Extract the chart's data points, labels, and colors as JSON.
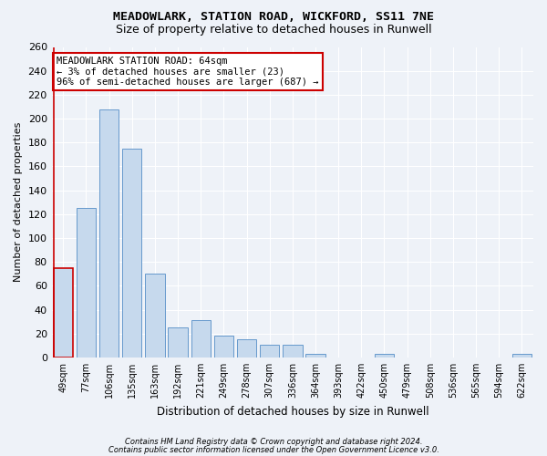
{
  "title1": "MEADOWLARK, STATION ROAD, WICKFORD, SS11 7NE",
  "title2": "Size of property relative to detached houses in Runwell",
  "xlabel": "Distribution of detached houses by size in Runwell",
  "ylabel": "Number of detached properties",
  "categories": [
    "49sqm",
    "77sqm",
    "106sqm",
    "135sqm",
    "163sqm",
    "192sqm",
    "221sqm",
    "249sqm",
    "278sqm",
    "307sqm",
    "336sqm",
    "364sqm",
    "393sqm",
    "422sqm",
    "450sqm",
    "479sqm",
    "508sqm",
    "536sqm",
    "565sqm",
    "594sqm",
    "622sqm"
  ],
  "values": [
    75,
    125,
    208,
    175,
    70,
    25,
    31,
    18,
    15,
    11,
    11,
    3,
    0,
    0,
    3,
    0,
    0,
    0,
    0,
    0,
    3
  ],
  "bar_color": "#c6d9ed",
  "bar_edge_color": "#6699cc",
  "highlight_bar_edge_color": "#cc0000",
  "annotation_text": "MEADOWLARK STATION ROAD: 64sqm\n← 3% of detached houses are smaller (23)\n96% of semi-detached houses are larger (687) →",
  "annotation_box_edge_color": "#cc0000",
  "ylim": [
    0,
    260
  ],
  "yticks": [
    0,
    20,
    40,
    60,
    80,
    100,
    120,
    140,
    160,
    180,
    200,
    220,
    240,
    260
  ],
  "footnote1": "Contains HM Land Registry data © Crown copyright and database right 2024.",
  "footnote2": "Contains public sector information licensed under the Open Government Licence v3.0.",
  "background_color": "#eef2f8",
  "plot_bg_color": "#eef2f8",
  "grid_color": "#ffffff",
  "title1_fontsize": 9.5,
  "title2_fontsize": 9,
  "xlabel_fontsize": 8.5,
  "ylabel_fontsize": 8
}
